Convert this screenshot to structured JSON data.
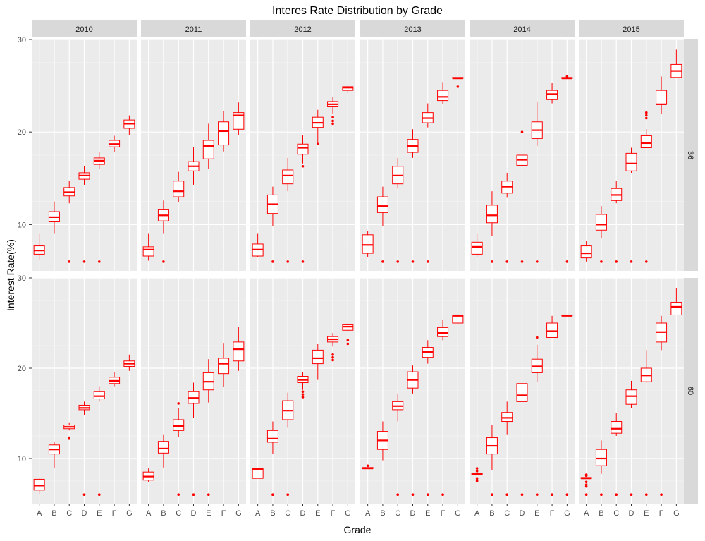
{
  "chart_data": {
    "type": "boxplot",
    "title": "Interes Rate Distribution by Grade",
    "xlabel": "Grade",
    "ylabel": "Interest Rate(%)",
    "ylim": [
      5,
      30
    ],
    "y_ticks": [
      10,
      20,
      30
    ],
    "categories": [
      "A",
      "B",
      "C",
      "D",
      "E",
      "F",
      "G"
    ],
    "columns": [
      "2010",
      "2011",
      "2012",
      "2013",
      "2014",
      "2015"
    ],
    "rows": [
      "36",
      "60"
    ],
    "box_color": "#ff0000",
    "panel_bg": "#ebebeb",
    "strip_bg": "#d9d9d9",
    "grid": true,
    "boxes": {
      "36": {
        "2010": [
          [
            6.2,
            6.8,
            7.2,
            7.7,
            9.0
          ],
          [
            9.0,
            10.3,
            10.8,
            11.4,
            12.5
          ],
          [
            12.3,
            13.1,
            13.5,
            14.0,
            14.7
          ],
          [
            14.3,
            14.9,
            15.3,
            15.6,
            16.3
          ],
          [
            16.0,
            16.5,
            16.9,
            17.2,
            17.8
          ],
          [
            17.8,
            18.4,
            18.7,
            19.1,
            19.6
          ],
          [
            19.7,
            20.4,
            20.9,
            21.3,
            21.8
          ]
        ],
        "2011": [
          [
            6.1,
            6.6,
            7.3,
            7.6,
            9.0
          ],
          [
            9.0,
            10.4,
            11.0,
            11.6,
            12.6
          ],
          [
            12.4,
            13.0,
            13.6,
            14.7,
            15.7
          ],
          [
            14.3,
            15.8,
            16.3,
            16.8,
            18.4
          ],
          [
            16.0,
            17.1,
            18.5,
            19.1,
            20.9
          ],
          [
            17.9,
            18.6,
            20.1,
            21.1,
            22.3
          ],
          [
            19.7,
            20.3,
            21.8,
            22.1,
            23.2
          ]
        ],
        "2012": [
          [
            6.5,
            6.6,
            7.3,
            7.9,
            9.0
          ],
          [
            9.8,
            11.2,
            12.2,
            13.2,
            14.1
          ],
          [
            13.6,
            14.4,
            15.3,
            15.9,
            17.2
          ],
          [
            16.6,
            17.6,
            18.3,
            18.7,
            19.7
          ],
          [
            18.8,
            20.5,
            21.0,
            21.6,
            22.4
          ],
          [
            22.0,
            22.8,
            23.0,
            23.3,
            23.8
          ],
          [
            24.2,
            24.5,
            24.8,
            24.9,
            25.0
          ]
        ],
        "2013": [
          [
            6.5,
            6.9,
            7.8,
            8.9,
            9.3
          ],
          [
            9.8,
            11.3,
            12.0,
            13.0,
            14.1
          ],
          [
            13.9,
            14.4,
            15.3,
            16.3,
            17.2
          ],
          [
            17.2,
            17.8,
            18.5,
            19.2,
            20.3
          ],
          [
            20.5,
            21.0,
            21.5,
            22.1,
            23.1
          ],
          [
            23.0,
            23.4,
            23.8,
            24.5,
            25.4
          ],
          [
            25.8,
            25.8,
            25.8,
            25.9,
            25.9
          ]
        ],
        "2014": [
          [
            6.5,
            6.8,
            7.6,
            8.1,
            9.0
          ],
          [
            8.8,
            10.2,
            11.0,
            12.1,
            13.6
          ],
          [
            12.9,
            13.4,
            14.1,
            14.7,
            15.6
          ],
          [
            15.6,
            16.4,
            17.0,
            17.5,
            18.3
          ],
          [
            18.5,
            19.3,
            20.2,
            21.1,
            23.3
          ],
          [
            23.1,
            23.5,
            24.1,
            24.5,
            25.3
          ],
          [
            25.8,
            25.8,
            25.8,
            25.9,
            25.9
          ]
        ],
        "2015": [
          [
            6.0,
            6.4,
            6.9,
            7.7,
            8.2
          ],
          [
            8.5,
            9.4,
            10.0,
            11.1,
            12.0
          ],
          [
            12.3,
            12.6,
            13.2,
            13.9,
            14.7
          ],
          [
            15.6,
            15.8,
            16.6,
            17.7,
            18.3
          ],
          [
            18.3,
            18.3,
            18.8,
            19.6,
            20.3
          ],
          [
            22.0,
            23.0,
            23.0,
            24.5,
            26.0
          ],
          [
            25.9,
            25.9,
            26.6,
            27.3,
            28.9
          ]
        ]
      },
      "60": {
        "2010": [
          [
            6.0,
            6.5,
            7.0,
            7.7,
            7.9
          ],
          [
            8.9,
            10.5,
            11.0,
            11.5,
            11.8
          ],
          [
            13.1,
            13.3,
            13.5,
            13.7,
            14.0
          ],
          [
            14.8,
            15.4,
            15.6,
            15.9,
            16.3
          ],
          [
            16.3,
            16.6,
            16.9,
            17.4,
            18.0
          ],
          [
            18.0,
            18.3,
            18.6,
            19.0,
            19.6
          ],
          [
            19.7,
            20.2,
            20.5,
            20.8,
            21.5
          ]
        ],
        "2011": [
          [
            7.4,
            7.6,
            8.0,
            8.5,
            8.9
          ],
          [
            9.0,
            10.6,
            11.1,
            11.9,
            12.6
          ],
          [
            12.4,
            13.1,
            13.6,
            14.3,
            15.6
          ],
          [
            14.5,
            16.1,
            16.7,
            17.4,
            18.4
          ],
          [
            16.2,
            17.6,
            18.5,
            19.5,
            21.0
          ],
          [
            17.9,
            19.4,
            20.5,
            21.1,
            22.8
          ],
          [
            19.7,
            20.8,
            22.1,
            22.9,
            24.6
          ]
        ],
        "2012": [
          [
            7.8,
            7.8,
            8.8,
            8.9,
            8.9
          ],
          [
            10.5,
            11.8,
            12.2,
            13.1,
            14.1
          ],
          [
            13.4,
            14.3,
            15.3,
            16.4,
            17.3
          ],
          [
            17.6,
            18.4,
            18.7,
            19.1,
            19.6
          ],
          [
            18.7,
            20.5,
            21.1,
            22.0,
            22.7
          ],
          [
            22.4,
            22.9,
            23.2,
            23.5,
            23.9
          ],
          [
            24.1,
            24.2,
            24.6,
            24.8,
            25.0
          ]
        ],
        "2013": [
          [
            8.9,
            8.9,
            8.9,
            9.0,
            9.0
          ],
          [
            9.8,
            11.0,
            12.0,
            13.0,
            14.1
          ],
          [
            14.1,
            15.4,
            15.8,
            16.3,
            17.2
          ],
          [
            17.2,
            17.8,
            18.7,
            19.6,
            20.3
          ],
          [
            20.5,
            21.2,
            21.8,
            22.3,
            23.1
          ],
          [
            23.1,
            23.5,
            23.9,
            24.5,
            25.4
          ],
          [
            24.9,
            25.0,
            25.8,
            25.9,
            26.0
          ]
        ],
        "2014": [
          [
            8.2,
            8.2,
            8.3,
            8.4,
            8.7
          ],
          [
            8.7,
            10.5,
            11.4,
            12.3,
            13.7
          ],
          [
            12.6,
            14.1,
            14.5,
            15.1,
            16.3
          ],
          [
            15.6,
            16.3,
            17.0,
            18.3,
            19.9
          ],
          [
            18.5,
            19.5,
            20.2,
            21.0,
            22.6
          ],
          [
            23.4,
            23.4,
            24.1,
            25.0,
            25.8
          ],
          [
            25.8,
            25.8,
            25.8,
            25.9,
            25.9
          ]
        ],
        "2015": [
          [
            7.8,
            7.8,
            7.8,
            7.9,
            7.9
          ],
          [
            8.3,
            9.2,
            10.0,
            11.0,
            12.0
          ],
          [
            12.5,
            12.8,
            13.3,
            14.1,
            15.0
          ],
          [
            15.6,
            16.0,
            16.9,
            17.6,
            18.6
          ],
          [
            18.4,
            18.5,
            19.2,
            20.0,
            22.0
          ],
          [
            22.0,
            22.9,
            24.0,
            25.0,
            25.8
          ],
          [
            25.9,
            25.9,
            26.8,
            27.3,
            28.9
          ]
        ]
      }
    },
    "outliers": {
      "36": {
        "2010": [
          [],
          [],
          [
            6.0
          ],
          [
            6.0
          ],
          [
            6.0
          ],
          [],
          []
        ],
        "2011": [
          [],
          [
            6.0
          ],
          [],
          [],
          [],
          [],
          []
        ],
        "2012": [
          [],
          [
            6.0
          ],
          [
            6.0
          ],
          [
            6.0,
            16.3
          ],
          [
            18.7
          ],
          [
            21.6,
            21.2,
            20.9
          ],
          []
        ],
        "2013": [
          [],
          [
            6.0
          ],
          [
            6.0
          ],
          [
            6.0
          ],
          [
            6.0
          ],
          [],
          [
            24.9
          ]
        ],
        "2014": [
          [],
          [
            6.0
          ],
          [
            6.0
          ],
          [
            6.0,
            20.0
          ],
          [
            6.0
          ],
          [],
          [
            6.0,
            26.0
          ]
        ],
        "2015": [
          [],
          [
            6.0
          ],
          [
            6.0
          ],
          [
            6.0
          ],
          [
            6.0,
            21.5,
            21.8,
            22.1
          ],
          [],
          []
        ]
      },
      "60": {
        "2010": [
          [],
          [],
          [
            12.2,
            12.3
          ],
          [
            6.0
          ],
          [
            6.0
          ],
          [],
          []
        ],
        "2011": [
          [],
          [],
          [
            6.0,
            16.1
          ],
          [
            6.0
          ],
          [
            6.0
          ],
          [],
          []
        ],
        "2012": [
          [],
          [
            6.0
          ],
          [
            6.0
          ],
          [
            16.8,
            17.1,
            17.4
          ],
          [],
          [
            20.9,
            21.2,
            21.5
          ],
          [
            22.7,
            23.1
          ]
        ],
        "2013": [
          [
            9.2
          ],
          [],
          [
            6.0
          ],
          [
            6.0
          ],
          [
            6.0
          ],
          [
            6.0
          ],
          []
        ],
        "2014": [
          [
            7.5,
            7.6,
            7.8,
            8.6,
            8.9
          ],
          [
            6.0
          ],
          [
            6.0
          ],
          [
            6.0
          ],
          [
            6.0,
            23.4
          ],
          [
            6.0
          ],
          [
            6.0
          ]
        ],
        "2015": [
          [
            6.0,
            6.9,
            7.1,
            7.4,
            8.1,
            8.2
          ],
          [
            6.0
          ],
          [
            6.0
          ],
          [
            6.0
          ],
          [
            6.0
          ],
          [
            6.0
          ],
          []
        ]
      }
    }
  }
}
